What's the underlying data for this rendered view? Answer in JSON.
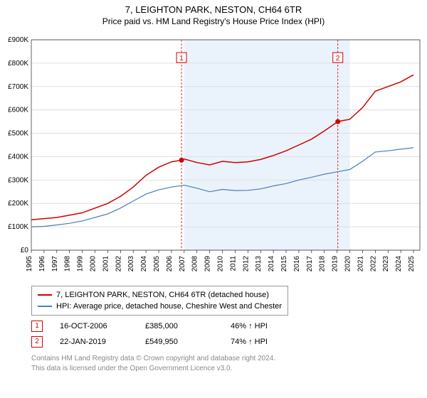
{
  "header": {
    "title": "7, LEIGHTON PARK, NESTON, CH64 6TR",
    "subtitle": "Price paid vs. HM Land Registry's House Price Index (HPI)"
  },
  "chart": {
    "type": "line",
    "background_color": "#ffffff",
    "grid_color": "#e0e0e0",
    "shaded_band": {
      "x_start": 2007,
      "x_end": 2020,
      "fill": "#eaf2fb"
    },
    "xlim": [
      1995,
      2025.5
    ],
    "ylim": [
      0,
      900
    ],
    "ytick_step": 100,
    "ytick_prefix": "£",
    "ytick_suffix": "K",
    "xticks": [
      1995,
      1996,
      1997,
      1998,
      1999,
      2000,
      2001,
      2002,
      2003,
      2004,
      2005,
      2006,
      2007,
      2008,
      2009,
      2010,
      2011,
      2012,
      2013,
      2014,
      2015,
      2016,
      2017,
      2018,
      2019,
      2020,
      2021,
      2022,
      2023,
      2024,
      2025
    ],
    "title_fontsize": 13,
    "axis_fontsize": 10,
    "series": [
      {
        "name": "subject",
        "label": "7, LEIGHTON PARK, NESTON, CH64 6TR (detached house)",
        "color": "#d00000",
        "line_width": 1.5,
        "points": [
          [
            1995,
            130
          ],
          [
            1996,
            135
          ],
          [
            1997,
            140
          ],
          [
            1998,
            150
          ],
          [
            1999,
            160
          ],
          [
            2000,
            180
          ],
          [
            2001,
            200
          ],
          [
            2002,
            230
          ],
          [
            2003,
            270
          ],
          [
            2004,
            320
          ],
          [
            2005,
            355
          ],
          [
            2006,
            378
          ],
          [
            2006.79,
            385
          ],
          [
            2007,
            390
          ],
          [
            2008,
            375
          ],
          [
            2009,
            365
          ],
          [
            2010,
            380
          ],
          [
            2011,
            375
          ],
          [
            2012,
            378
          ],
          [
            2013,
            388
          ],
          [
            2014,
            405
          ],
          [
            2015,
            425
          ],
          [
            2016,
            450
          ],
          [
            2017,
            475
          ],
          [
            2018,
            510
          ],
          [
            2019.06,
            550
          ],
          [
            2019.5,
            555
          ],
          [
            2020,
            560
          ],
          [
            2021,
            610
          ],
          [
            2022,
            680
          ],
          [
            2023,
            700
          ],
          [
            2024,
            720
          ],
          [
            2025,
            750
          ]
        ]
      },
      {
        "name": "hpi",
        "label": "HPI: Average price, detached house, Cheshire West and Chester",
        "color": "#4a7ebb",
        "line_width": 1.2,
        "points": [
          [
            1995,
            100
          ],
          [
            1996,
            102
          ],
          [
            1997,
            108
          ],
          [
            1998,
            115
          ],
          [
            1999,
            125
          ],
          [
            2000,
            140
          ],
          [
            2001,
            155
          ],
          [
            2002,
            180
          ],
          [
            2003,
            210
          ],
          [
            2004,
            240
          ],
          [
            2005,
            258
          ],
          [
            2006,
            270
          ],
          [
            2007,
            278
          ],
          [
            2008,
            265
          ],
          [
            2009,
            250
          ],
          [
            2010,
            260
          ],
          [
            2011,
            255
          ],
          [
            2012,
            256
          ],
          [
            2013,
            262
          ],
          [
            2014,
            275
          ],
          [
            2015,
            285
          ],
          [
            2016,
            300
          ],
          [
            2017,
            312
          ],
          [
            2018,
            325
          ],
          [
            2019,
            335
          ],
          [
            2020,
            345
          ],
          [
            2021,
            380
          ],
          [
            2022,
            420
          ],
          [
            2023,
            425
          ],
          [
            2024,
            432
          ],
          [
            2025,
            438
          ]
        ]
      }
    ],
    "sale_markers": [
      {
        "idx": "1",
        "x": 2006.79,
        "y": 385,
        "label_y_offset": -55,
        "dash_color": "#d00000"
      },
      {
        "idx": "2",
        "x": 2019.06,
        "y": 550,
        "label_y_offset": -55,
        "dash_color": "#d00000"
      }
    ]
  },
  "legend": {
    "rows": [
      {
        "color": "#d00000",
        "label": "7, LEIGHTON PARK, NESTON, CH64 6TR (detached house)"
      },
      {
        "color": "#4a7ebb",
        "label": "HPI: Average price, detached house, Cheshire West and Chester"
      }
    ]
  },
  "sales": [
    {
      "idx": "1",
      "date": "16-OCT-2006",
      "price": "£385,000",
      "delta": "46% ↑ HPI"
    },
    {
      "idx": "2",
      "date": "22-JAN-2019",
      "price": "£549,950",
      "delta": "74% ↑ HPI"
    }
  ],
  "footer": {
    "line1": "Contains HM Land Registry data © Crown copyright and database right 2024.",
    "line2": "This data is licensed under the Open Government Licence v3.0."
  }
}
